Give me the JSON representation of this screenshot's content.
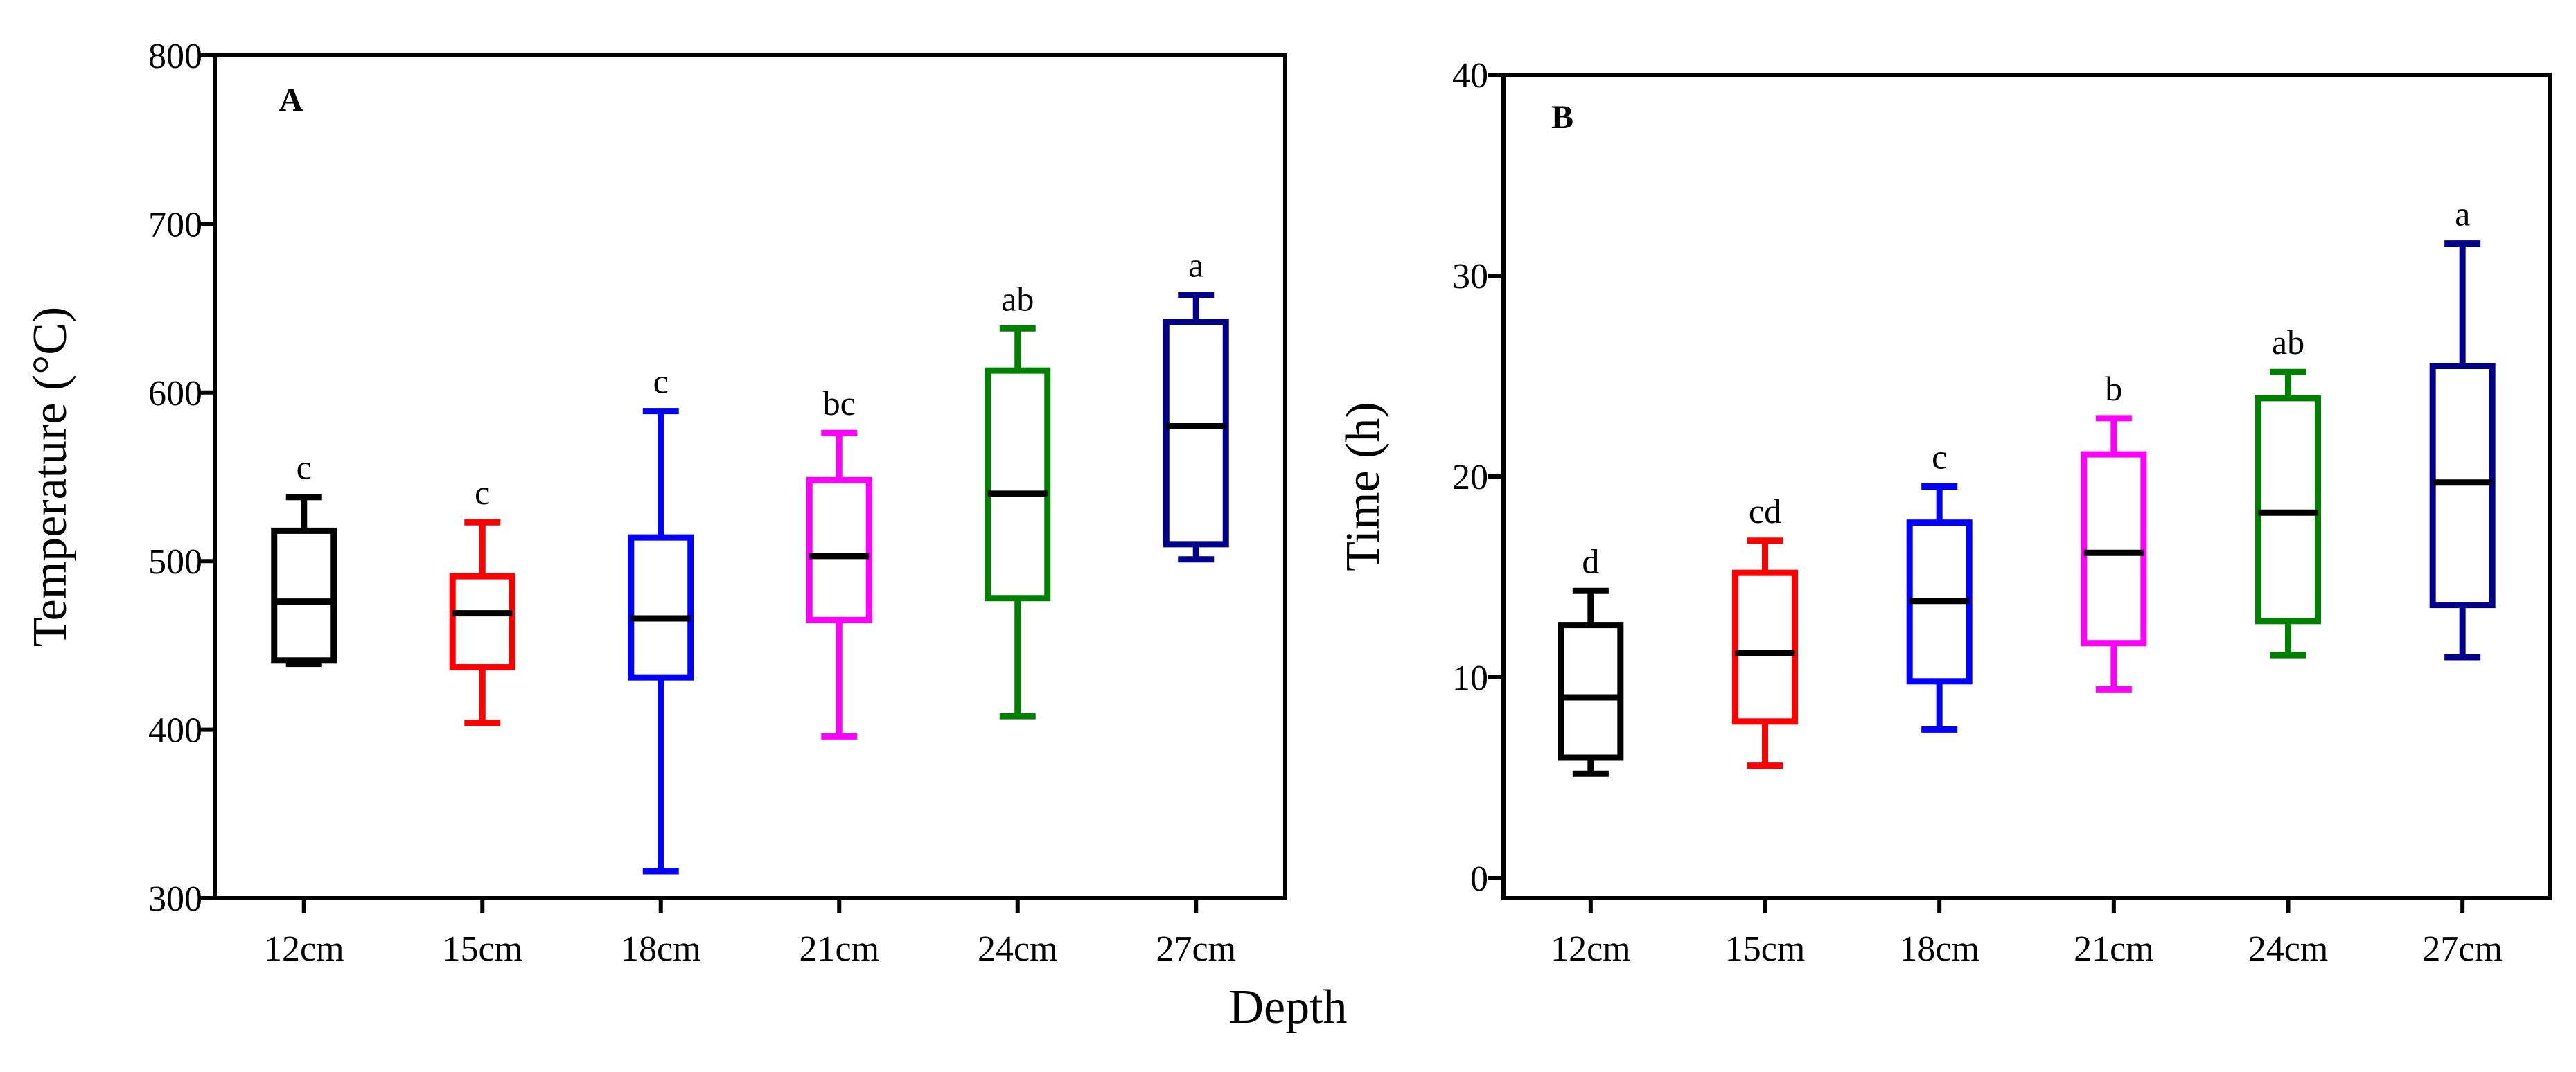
{
  "shared_xlabel": "Depth",
  "chart_data": [
    {
      "type": "box",
      "panel": "A",
      "xlabel": "",
      "ylabel": "Temperature (°C)",
      "ylim": [
        300,
        800
      ],
      "yticks": [
        300,
        400,
        500,
        600,
        700,
        800
      ],
      "categories": [
        "12cm",
        "15cm",
        "18cm",
        "21cm",
        "24cm",
        "27cm"
      ],
      "colors": [
        "#000000",
        "#ff0000",
        "#0000ff",
        "#ff00ff",
        "#008000",
        "#00008b"
      ],
      "boxes": [
        {
          "min": 439,
          "q1": 441,
          "median": 476,
          "q3": 518,
          "max": 538
        },
        {
          "min": 404,
          "q1": 437,
          "median": 469,
          "q3": 491,
          "max": 523
        },
        {
          "min": 316,
          "q1": 431,
          "median": 466,
          "q3": 514,
          "max": 589
        },
        {
          "min": 396,
          "q1": 465,
          "median": 503,
          "q3": 548,
          "max": 576
        },
        {
          "min": 408,
          "q1": 478,
          "median": 540,
          "q3": 613,
          "max": 638
        },
        {
          "min": 501,
          "q1": 510,
          "median": 580,
          "q3": 642,
          "max": 658
        }
      ],
      "significance": [
        "c",
        "c",
        "c",
        "bc",
        "ab",
        "a"
      ]
    },
    {
      "type": "box",
      "panel": "B",
      "xlabel": "",
      "ylabel": "Time (h)",
      "ylim": [
        -1,
        40
      ],
      "yticks": [
        0,
        10,
        20,
        30,
        40
      ],
      "categories": [
        "12cm",
        "15cm",
        "18cm",
        "21cm",
        "24cm",
        "27cm"
      ],
      "colors": [
        "#000000",
        "#ff0000",
        "#0000ff",
        "#ff00ff",
        "#008000",
        "#00008b"
      ],
      "boxes": [
        {
          "min": 5.2,
          "q1": 6.0,
          "median": 9.0,
          "q3": 12.6,
          "max": 14.3
        },
        {
          "min": 5.6,
          "q1": 7.8,
          "median": 11.2,
          "q3": 15.2,
          "max": 16.8
        },
        {
          "min": 7.4,
          "q1": 9.8,
          "median": 13.8,
          "q3": 17.7,
          "max": 19.5
        },
        {
          "min": 9.4,
          "q1": 11.7,
          "median": 16.2,
          "q3": 21.1,
          "max": 22.9
        },
        {
          "min": 11.1,
          "q1": 12.8,
          "median": 18.2,
          "q3": 23.9,
          "max": 25.2
        },
        {
          "min": 11.0,
          "q1": 13.6,
          "median": 19.7,
          "q3": 25.5,
          "max": 31.6
        }
      ],
      "significance": [
        "d",
        "cd",
        "c",
        "b",
        "ab",
        "a"
      ]
    }
  ]
}
